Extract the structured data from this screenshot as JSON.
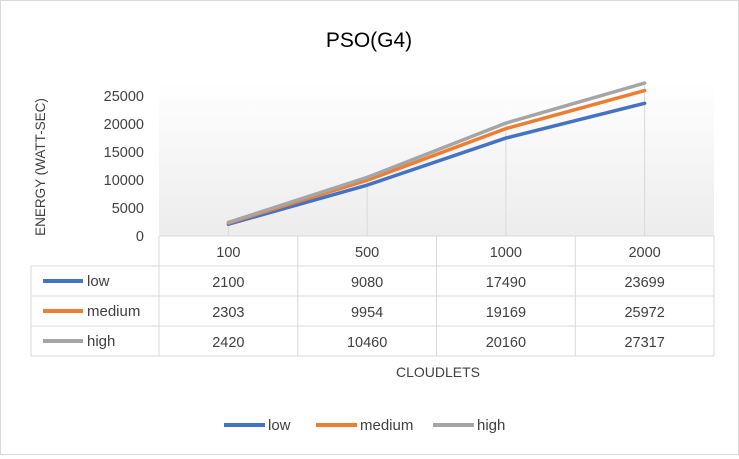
{
  "chart_data": {
    "type": "line",
    "title": "PSO(G4)",
    "xlabel": "CLOUDLETS",
    "ylabel": "ENERGY (WATT-SEC)",
    "categories": [
      "100",
      "500",
      "1000",
      "2000"
    ],
    "ylim": [
      0,
      25000
    ],
    "yticks": [
      "0",
      "5000",
      "10000",
      "15000",
      "20000",
      "25000"
    ],
    "series": [
      {
        "name": "low",
        "color": "#4472c4",
        "values": [
          2100,
          9080,
          17490,
          23699
        ],
        "labels": [
          "2100",
          "9080",
          "17490",
          "23699"
        ]
      },
      {
        "name": "medium",
        "color": "#ed7d31",
        "values": [
          2303,
          9954,
          19169,
          25972
        ],
        "labels": [
          "2303",
          "9954",
          "19169",
          "25972"
        ]
      },
      {
        "name": "high",
        "color": "#a5a5a5",
        "values": [
          2420,
          10460,
          20160,
          27317
        ],
        "labels": [
          "2420",
          "10460",
          "20160",
          "27317"
        ]
      }
    ],
    "data_table": true,
    "gridlines": "vertical",
    "legend_position": "bottom"
  }
}
